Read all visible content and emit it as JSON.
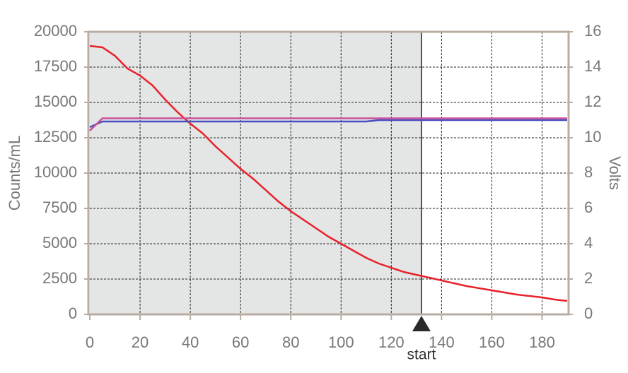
{
  "chart_data": {
    "type": "line",
    "ylabel": "Counts/mL",
    "y2label": "Volts",
    "x": [
      0,
      5,
      10,
      15,
      20,
      25,
      30,
      35,
      40,
      45,
      50,
      55,
      60,
      65,
      70,
      75,
      80,
      85,
      90,
      95,
      100,
      105,
      110,
      115,
      120,
      125,
      130,
      135,
      140,
      145,
      150,
      155,
      160,
      165,
      170,
      175,
      180,
      185,
      190
    ],
    "series": [
      {
        "color": "#e8212b",
        "values": [
          19000,
          18900,
          18300,
          17400,
          16900,
          16200,
          15200,
          14300,
          13500,
          12800,
          11900,
          11100,
          10300,
          9600,
          8800,
          8000,
          7300,
          6700,
          6100,
          5500,
          5000,
          4500,
          4000,
          3600,
          3300,
          3000,
          2800,
          2600,
          2400,
          2200,
          2000,
          1850,
          1700,
          1550,
          1400,
          1300,
          1200,
          1050,
          950
        ]
      },
      {
        "color": "#4a4fc0",
        "axis": "y2",
        "values": [
          10.6,
          10.92,
          10.92,
          10.92,
          10.92,
          10.92,
          10.92,
          10.92,
          10.92,
          10.92,
          10.92,
          10.92,
          10.92,
          10.92,
          10.92,
          10.92,
          10.92,
          10.92,
          10.92,
          10.92,
          10.92,
          10.92,
          10.92,
          11.0,
          11.0,
          11.0,
          11.0,
          11.0,
          11.0,
          11.0,
          11.0,
          11.0,
          11.0,
          11.0,
          11.0,
          11.0,
          11.0,
          11.0,
          11.0
        ]
      },
      {
        "color": "#c8509a",
        "axis": "y2",
        "values": [
          10.4,
          11.1,
          11.1,
          11.1,
          11.1,
          11.1,
          11.1,
          11.1,
          11.1,
          11.1,
          11.1,
          11.1,
          11.1,
          11.1,
          11.1,
          11.1,
          11.1,
          11.1,
          11.1,
          11.1,
          11.1,
          11.1,
          11.1,
          11.1,
          11.1,
          11.1,
          11.1,
          11.1,
          11.1,
          11.1,
          11.1,
          11.1,
          11.1,
          11.1,
          11.1,
          11.1,
          11.1,
          11.1,
          11.1
        ]
      }
    ],
    "annotation": {
      "text": "start",
      "x": 132
    },
    "xlim": [
      0,
      190
    ],
    "xticks": [
      0,
      20,
      40,
      60,
      80,
      100,
      120,
      140,
      160,
      180
    ],
    "ylim": [
      0,
      20000
    ],
    "yticks": [
      0,
      2500,
      5000,
      7500,
      10000,
      12500,
      15000,
      17500,
      20000
    ],
    "y2lim": [
      0,
      16
    ],
    "y2ticks": [
      0,
      2,
      4,
      6,
      8,
      10,
      12,
      14,
      16
    ],
    "grid": true
  }
}
